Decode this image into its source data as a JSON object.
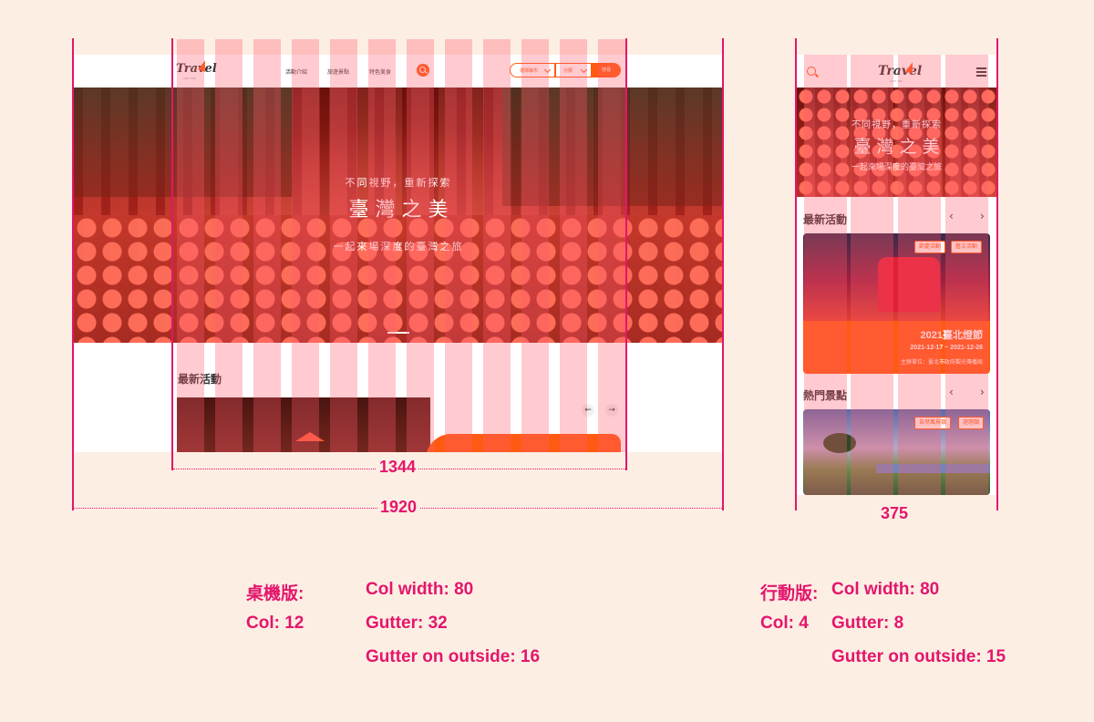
{
  "desktop": {
    "header": {
      "logo": "Travel",
      "logo_tagline": "GUT TAY",
      "nav": [
        "活動介紹",
        "旅遊景點",
        "特色美食"
      ],
      "city_select": "選擇縣市",
      "category_select": "分類",
      "search_button": "搜尋"
    },
    "hero": {
      "subtitle": "不同視野，重新探索",
      "title": "臺 灣 之 美",
      "tagline": "一起來場深度的臺灣之旅"
    },
    "section_title": "最新活動",
    "prev_arrow": "←",
    "next_arrow": "→"
  },
  "mobile": {
    "logo": "Travel",
    "logo_tagline": "GUT TAY",
    "hero": {
      "subtitle": "不同視野，重新探索",
      "title": "臺 灣 之 美",
      "tagline": "一起來場深度的臺灣之旅"
    },
    "events_title": "最新活動",
    "spots_title": "熱門景點",
    "prev": "‹",
    "next": "›",
    "event_card": {
      "tags": [
        "節慶活動",
        "藝文活動"
      ],
      "title": "2021臺北燈節",
      "date": "2021-12-17 ~ 2021-12-26",
      "organizer": "主辦單位：臺北市政府觀光傳播局"
    },
    "spot_card": {
      "tags": [
        "自然風景類",
        "遊憩類"
      ]
    }
  },
  "dimensions": {
    "container": "1344",
    "desktop": "1920",
    "mobile": "375"
  },
  "spec": {
    "desktop_label": "桌機版:",
    "desktop_col": "Col: 12",
    "desktop_col_width": "Col width: 80",
    "desktop_gutter": "Gutter: 32",
    "desktop_outside": "Gutter on outside: 16",
    "mobile_label": "行動版:",
    "mobile_col": "Col: 4",
    "mobile_col_width": "Col width: 80",
    "mobile_gutter": "Gutter: 8",
    "mobile_outside": "Gutter on outside: 15"
  },
  "colors": {
    "accent": "#ff5a14",
    "guide": "#e4156c",
    "background": "#fdeee3"
  }
}
